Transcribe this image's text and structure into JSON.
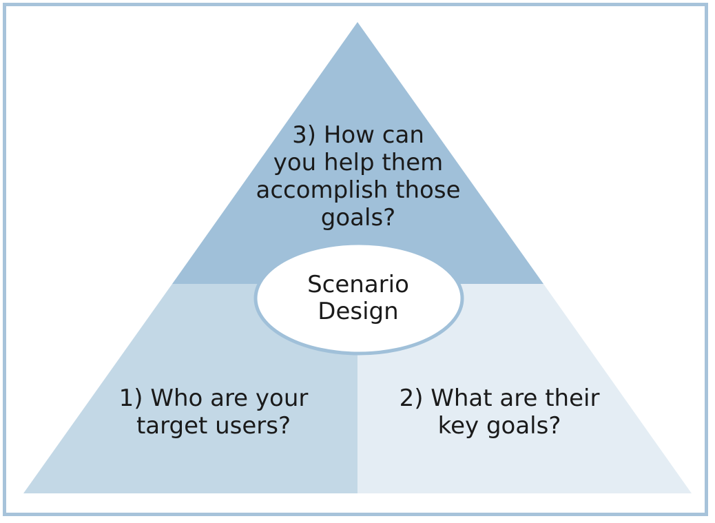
{
  "diagram": {
    "top_section": {
      "text": "3) How can\nyou help them\naccomplish those\ngoals?"
    },
    "center": {
      "text": "Scenario\nDesign"
    },
    "left_section": {
      "text": "1) Who are your\ntarget users?"
    },
    "right_section": {
      "text": "2) What are their\nkey goals?"
    }
  },
  "colors": {
    "frame": "#a7c3da",
    "top_section": "#a0c0d9",
    "left_section": "#c3d8e6",
    "right_section": "#e4edf4",
    "ellipse_fill": "#ffffff",
    "ellipse_stroke": "#a0c0d9"
  }
}
